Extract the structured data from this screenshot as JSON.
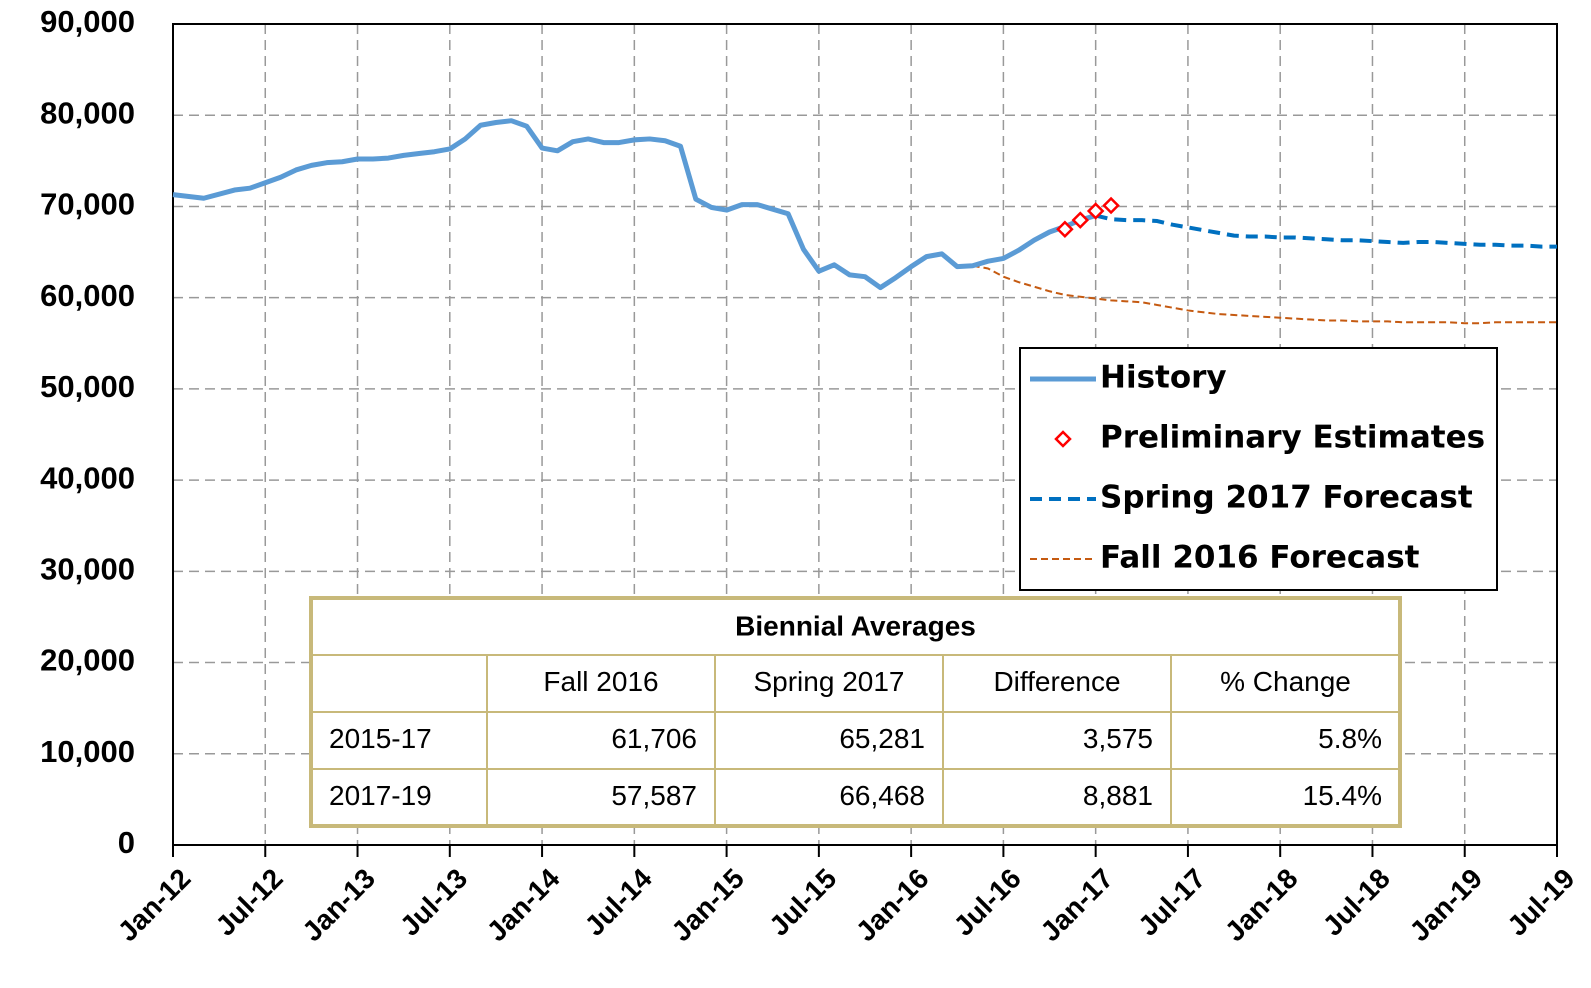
{
  "chart_data": {
    "type": "line",
    "xlim": [
      0,
      90
    ],
    "ylim": [
      0,
      90000
    ],
    "xticks": [
      {
        "value": 0,
        "label": "Jan-12"
      },
      {
        "value": 6,
        "label": "Jul-12"
      },
      {
        "value": 12,
        "label": "Jan-13"
      },
      {
        "value": 18,
        "label": "Jul-13"
      },
      {
        "value": 24,
        "label": "Jan-14"
      },
      {
        "value": 30,
        "label": "Jul-14"
      },
      {
        "value": 36,
        "label": "Jan-15"
      },
      {
        "value": 42,
        "label": "Jul-15"
      },
      {
        "value": 48,
        "label": "Jan-16"
      },
      {
        "value": 54,
        "label": "Jul-16"
      },
      {
        "value": 60,
        "label": "Jan-17"
      },
      {
        "value": 66,
        "label": "Jul-17"
      },
      {
        "value": 72,
        "label": "Jan-18"
      },
      {
        "value": 78,
        "label": "Jul-18"
      },
      {
        "value": 84,
        "label": "Jan-19"
      },
      {
        "value": 90,
        "label": "Jul-19"
      }
    ],
    "yticks": [
      0,
      {
        "value": 10000,
        "label": "10,000"
      },
      {
        "value": 20000,
        "label": "20,000"
      },
      {
        "value": 30000,
        "label": "30,000"
      },
      {
        "value": 40000,
        "label": "40,000"
      },
      {
        "value": 50000,
        "label": "50,000"
      },
      {
        "value": 60000,
        "label": "60,000"
      },
      {
        "value": 70000,
        "label": "70,000"
      },
      {
        "value": 80000,
        "label": "80,000"
      },
      {
        "value": 90000,
        "label": "90,000"
      }
    ],
    "grid": true,
    "legend": "right",
    "series": [
      {
        "name": "History",
        "color": "#5b9bd5",
        "style": "solid",
        "x": [
          0,
          2,
          4,
          5,
          6,
          7,
          8,
          9,
          10,
          11,
          12,
          13,
          14,
          15,
          16,
          17,
          18,
          19,
          20,
          21,
          22,
          23,
          24,
          25,
          26,
          27,
          28,
          29,
          30,
          31,
          32,
          33,
          34,
          35,
          36,
          37,
          38,
          39,
          40,
          41,
          42,
          43,
          44,
          45,
          46,
          47,
          48,
          49,
          50,
          51,
          52,
          53,
          54,
          55,
          56,
          57,
          58,
          59,
          60
        ],
        "values": [
          71300,
          70900,
          71800,
          72000,
          72600,
          73200,
          74000,
          74500,
          74800,
          74900,
          75200,
          75200,
          75300,
          75600,
          75800,
          76000,
          76300,
          77400,
          78900,
          79200,
          79400,
          78800,
          76400,
          76100,
          77100,
          77400,
          77000,
          77000,
          77300,
          77400,
          77200,
          76600,
          70800,
          69900,
          69600,
          70200,
          70200,
          69700,
          69200,
          65300,
          62900,
          63600,
          62500,
          62300,
          61100,
          62200,
          63400,
          64500,
          64800,
          63400,
          63500,
          64000,
          64300,
          65200,
          66300,
          67200,
          67800,
          68500,
          69000
        ]
      },
      {
        "name": "Preliminary Estimates",
        "color": "#ff0000",
        "style": "marker",
        "x": [
          58,
          59,
          60,
          61
        ],
        "values": [
          67500,
          68500,
          69500,
          70100
        ]
      },
      {
        "name": "Spring 2017 Forecast",
        "color": "#0070c0",
        "style": "dashed",
        "x": [
          60,
          61,
          62,
          63,
          64,
          65,
          66,
          67,
          68,
          69,
          70,
          71,
          72,
          73,
          74,
          75,
          76,
          77,
          78,
          79,
          80,
          81,
          82,
          83,
          84,
          85,
          86,
          87,
          88,
          89,
          90
        ],
        "values": [
          69000,
          68600,
          68500,
          68500,
          68400,
          68000,
          67700,
          67400,
          67100,
          66800,
          66700,
          66700,
          66600,
          66600,
          66500,
          66400,
          66300,
          66300,
          66200,
          66100,
          66000,
          66100,
          66100,
          66000,
          65900,
          65800,
          65800,
          65700,
          65700,
          65600,
          65600
        ]
      },
      {
        "name": "Fall 2016 Forecast",
        "color": "#c55a11",
        "style": "dotted",
        "x": [
          52,
          53,
          54,
          55,
          56,
          57,
          58,
          59,
          60,
          61,
          62,
          63,
          64,
          65,
          66,
          67,
          68,
          69,
          70,
          71,
          72,
          73,
          74,
          75,
          76,
          77,
          78,
          79,
          80,
          81,
          82,
          83,
          84,
          85,
          86,
          87,
          88,
          89,
          90
        ],
        "values": [
          63500,
          63200,
          62300,
          61700,
          61200,
          60700,
          60300,
          60100,
          59900,
          59700,
          59600,
          59500,
          59200,
          58900,
          58600,
          58400,
          58200,
          58100,
          58000,
          57900,
          57800,
          57700,
          57600,
          57500,
          57500,
          57400,
          57400,
          57400,
          57300,
          57300,
          57300,
          57300,
          57200,
          57200,
          57300,
          57300,
          57300,
          57300,
          57300
        ]
      }
    ],
    "table": {
      "title": "Biennial Averages",
      "header": [
        "",
        "Fall 2016",
        "Spring 2017",
        "Difference",
        "% Change"
      ],
      "rows": [
        [
          "2015-17",
          "61,706",
          "65,281",
          "3,575",
          "5.8%"
        ],
        [
          "2017-19",
          "57,587",
          "66,468",
          "8,881",
          "15.4%"
        ]
      ]
    }
  }
}
